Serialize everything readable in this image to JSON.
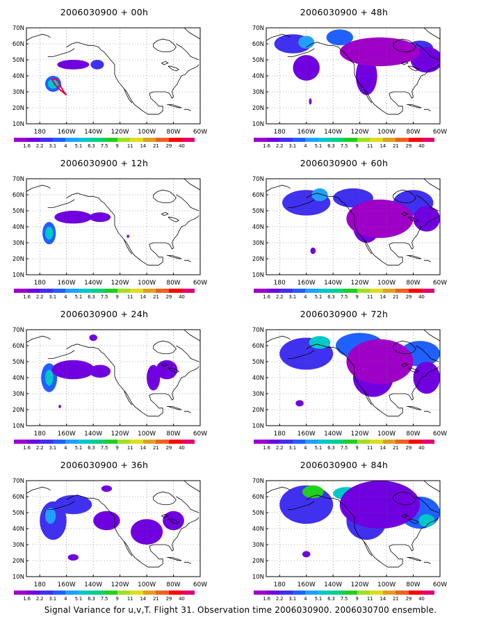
{
  "panels": [
    {
      "title": "2006030900 + 00h",
      "lead_hours": 0
    },
    {
      "title": "2006030900 + 48h",
      "lead_hours": 48
    },
    {
      "title": "2006030900 + 12h",
      "lead_hours": 12
    },
    {
      "title": "2006030900 + 60h",
      "lead_hours": 60
    },
    {
      "title": "2006030900 + 24h",
      "lead_hours": 24
    },
    {
      "title": "2006030900 + 72h",
      "lead_hours": 72
    },
    {
      "title": "2006030900 + 36h",
      "lead_hours": 36
    },
    {
      "title": "2006030900 + 84h",
      "lead_hours": 84
    }
  ],
  "lat_labels": [
    "10N",
    "20N",
    "30N",
    "40N",
    "50N",
    "60N",
    "70N"
  ],
  "lon_labels": [
    "180",
    "160W",
    "140W",
    "120W",
    "100W",
    "80W",
    "60W"
  ],
  "colorbar": {
    "labels": [
      "1.6",
      "2.2",
      "3.1",
      "4",
      "5.1",
      "6.3",
      "7.5",
      "9",
      "11",
      "14",
      "21",
      "29",
      "40"
    ],
    "colors": [
      "#9f00c8",
      "#7000e0",
      "#4030f0",
      "#2060ff",
      "#20a0ff",
      "#00c8c8",
      "#00d080",
      "#20d020",
      "#a0e020",
      "#e0dc20",
      "#e0a020",
      "#f06020",
      "#ff0000",
      "#e00070"
    ]
  },
  "caption": "Signal Variance for u,v,T. Flight 31. Observation time 2006030900. 2006030700 ensemble."
}
